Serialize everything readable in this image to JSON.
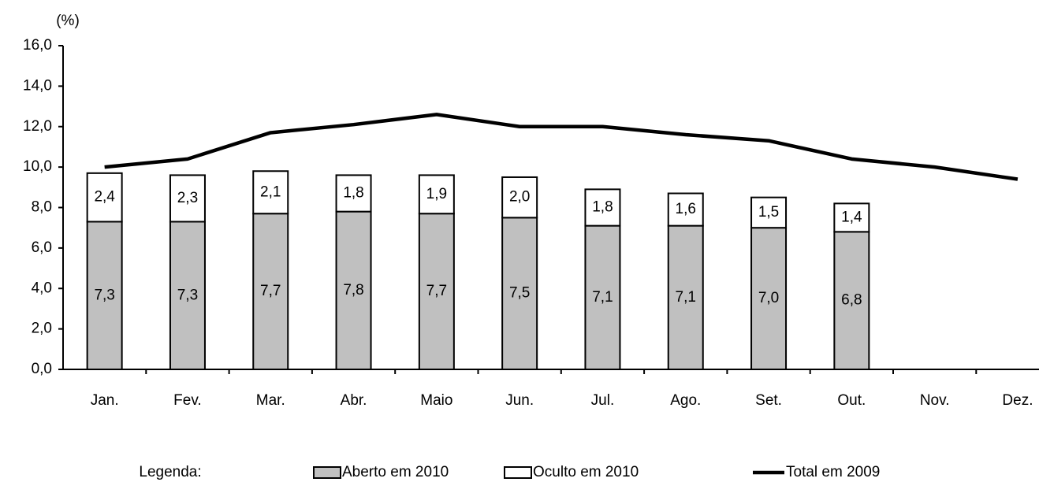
{
  "chart_data": {
    "type": "stacked_bar_line",
    "y_unit_label": "(%)",
    "legend_title": "Legenda:",
    "categories": [
      "Jan.",
      "Fev.",
      "Mar.",
      "Abr.",
      "Maio",
      "Jun.",
      "Jul.",
      "Ago.",
      "Set.",
      "Out.",
      "Nov.",
      "Dez."
    ],
    "series": [
      {
        "name": "Aberto em 2010",
        "type": "bar",
        "color": "#c0c0c0",
        "values": [
          7.3,
          7.3,
          7.7,
          7.8,
          7.7,
          7.5,
          7.1,
          7.1,
          7.0,
          6.8,
          null,
          null
        ],
        "value_labels": [
          "7,3",
          "7,3",
          "7,7",
          "7,8",
          "7,7",
          "7,5",
          "7,1",
          "7,1",
          "7,0",
          "6,8",
          null,
          null
        ]
      },
      {
        "name": "Oculto em 2010",
        "type": "bar",
        "color": "#ffffff",
        "values": [
          2.4,
          2.3,
          2.1,
          1.8,
          1.9,
          2.0,
          1.8,
          1.6,
          1.5,
          1.4,
          null,
          null
        ],
        "value_labels": [
          "2,4",
          "2,3",
          "2,1",
          "1,8",
          "1,9",
          "2,0",
          "1,8",
          "1,6",
          "1,5",
          "1,4",
          null,
          null
        ]
      },
      {
        "name": "Total em 2009",
        "type": "line",
        "color": "#000000",
        "values": [
          10.0,
          10.4,
          11.7,
          12.1,
          12.6,
          12.0,
          12.0,
          11.6,
          11.3,
          10.4,
          10.0,
          9.4
        ]
      }
    ],
    "ylim": [
      0,
      16
    ],
    "yticks": [
      {
        "value": 0,
        "label": "0,0"
      },
      {
        "value": 2,
        "label": "2,0"
      },
      {
        "value": 4,
        "label": "4,0"
      },
      {
        "value": 6,
        "label": "6,0"
      },
      {
        "value": 8,
        "label": "8,0"
      },
      {
        "value": 10,
        "label": "10,0"
      },
      {
        "value": 12,
        "label": "12,0"
      },
      {
        "value": 14,
        "label": "14,0"
      },
      {
        "value": 16,
        "label": "16,0"
      }
    ],
    "grid": false
  }
}
